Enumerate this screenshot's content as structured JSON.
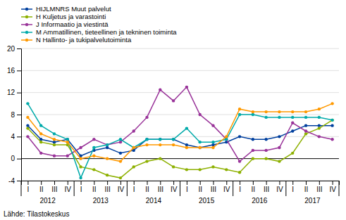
{
  "chart_data": {
    "type": "line",
    "categories": [
      "I",
      "II",
      "III",
      "IV",
      "I",
      "II",
      "III",
      "IV",
      "I",
      "II",
      "III",
      "IV",
      "I",
      "II",
      "III",
      "IV",
      "I",
      "II",
      "III",
      "IV",
      "I",
      "II",
      "III",
      "IV"
    ],
    "x_groups": [
      "2012",
      "2013",
      "2014",
      "2015",
      "2016",
      "2017"
    ],
    "source": "Lähde: Tilastokeskus",
    "series": [
      {
        "name": "HIJLMNRS Muut palvelut",
        "color": "#003f9e",
        "marker": "circle",
        "values": [
          6.0,
          3.5,
          3.0,
          3.5,
          0.5,
          1.5,
          2.0,
          1.0,
          1.5,
          3.5,
          3.5,
          3.5,
          2.5,
          2.0,
          2.5,
          3.0,
          4.0,
          3.5,
          3.5,
          4.0,
          5.0,
          6.0,
          6.0,
          6.0
        ]
      },
      {
        "name": "H Kuljetus ja varastointi",
        "color": "#8db000",
        "marker": "circle",
        "values": [
          5.5,
          3.0,
          2.5,
          2.5,
          -1.5,
          -2.0,
          -3.0,
          -3.5,
          -1.5,
          -0.5,
          0.0,
          -1.5,
          -2.0,
          -2.0,
          -1.5,
          -2.0,
          -2.5,
          0.0,
          0.0,
          -0.5,
          1.0,
          4.5,
          5.5,
          7.0
        ]
      },
      {
        "name": "J Informaatio ja viestintä",
        "color": "#993399",
        "marker": "circle",
        "values": [
          4.0,
          1.0,
          0.5,
          0.5,
          2.0,
          3.5,
          2.5,
          3.0,
          5.0,
          7.5,
          12.5,
          10.5,
          13.0,
          8.0,
          6.0,
          3.5,
          -0.5,
          1.5,
          1.5,
          2.0,
          6.5,
          5.0,
          4.0,
          3.5
        ]
      },
      {
        "name": "M Ammatillinen, tieteellinen ja tekninen toiminta",
        "color": "#00aaaa",
        "marker": "circle",
        "values": [
          10.0,
          6.0,
          4.5,
          3.5,
          -3.5,
          2.0,
          2.5,
          3.5,
          2.0,
          3.5,
          3.5,
          3.5,
          5.5,
          3.0,
          3.0,
          3.5,
          8.0,
          8.0,
          7.5,
          7.5,
          7.5,
          7.5,
          7.5,
          7.0
        ]
      },
      {
        "name": "N Hallinto- ja tukipalvelutoiminta",
        "color": "#ff9900",
        "marker": "circle",
        "values": [
          7.5,
          4.5,
          3.5,
          3.0,
          0.0,
          0.5,
          0.0,
          -0.5,
          2.0,
          2.5,
          2.5,
          2.5,
          2.0,
          2.0,
          2.0,
          4.0,
          9.0,
          8.5,
          8.5,
          8.5,
          8.5,
          8.5,
          9.0,
          10.0
        ]
      }
    ],
    "ylim": [
      -4,
      20
    ],
    "yticks": [
      -4,
      0,
      4,
      8,
      12,
      16,
      20
    ],
    "grid": true,
    "legend": "top"
  }
}
